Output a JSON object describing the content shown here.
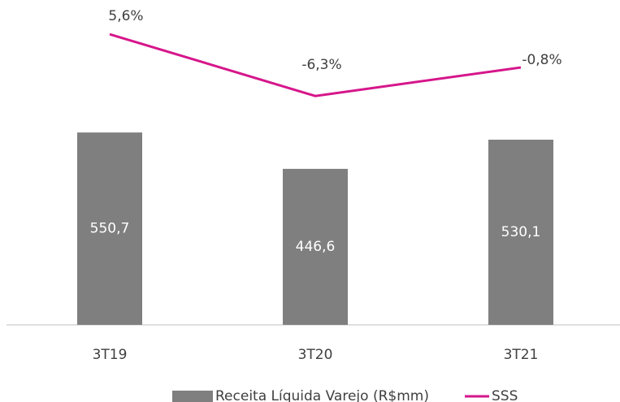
{
  "chart_data": {
    "type": "bar_line",
    "categories": [
      "3T19",
      "3T20",
      "3T21"
    ],
    "series": [
      {
        "name": "Receita Líquida Varejo (R$mm)",
        "color": "#7f7f7f",
        "values": [
          550.7,
          446.6,
          530.1
        ],
        "value_labels": [
          "550,7",
          "446,6",
          "530,1"
        ]
      },
      {
        "name": "SSS",
        "color": "#d6168b",
        "axis": "y2",
        "values": [
          5.6,
          -6.3,
          -0.8
        ],
        "value_labels": [
          "5,6%",
          "-6,3%",
          "-0,8%"
        ]
      }
    ],
    "ylim": [
      0,
      930
    ],
    "y2lim": [
      -50.4,
      12.2
    ]
  }
}
